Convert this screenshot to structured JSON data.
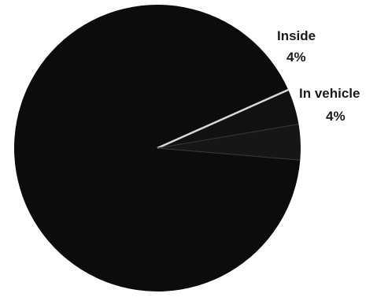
{
  "chart_data": {
    "type": "pie",
    "slices": [
      {
        "label": "Inside",
        "value": 4,
        "percent_label": "4%",
        "color": "#111111"
      },
      {
        "label": "In vehicle",
        "value": 4,
        "percent_label": "4%",
        "color": "#161616"
      },
      {
        "label": "",
        "value": 92,
        "percent_label": "",
        "color": "#0c0c0c"
      }
    ],
    "separator_color": "#d8d8d8",
    "start_angle_deg": -24
  }
}
